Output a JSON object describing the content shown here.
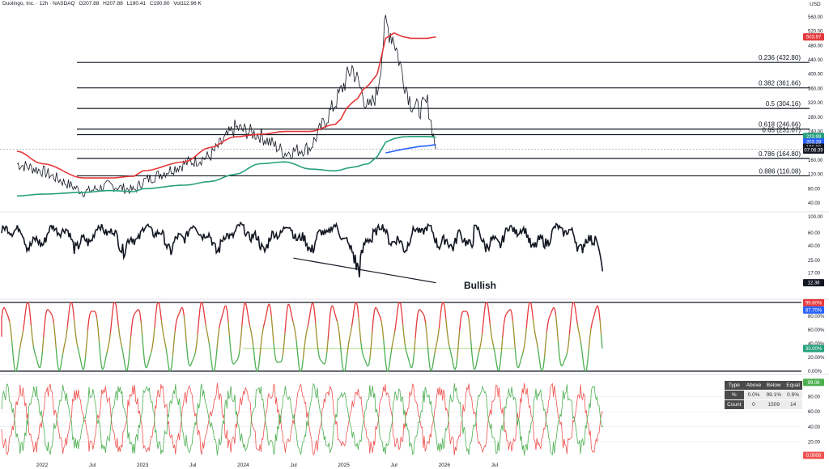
{
  "header": {
    "symbol": "Duolingo, Inc. · 12h · NASDAQ",
    "open": "O207.88",
    "high": "H207.88",
    "low": "L190.41",
    "close": "C190.80",
    "volume": "Vol112.96 K"
  },
  "currency": "USD",
  "chart_data": [
    {
      "type": "line",
      "panel": "price",
      "title": "",
      "x_ticks": [
        "2022",
        "Jul",
        "2023",
        "Jul",
        "2024",
        "Jul",
        "2025",
        "Jul",
        "2026",
        "Jul"
      ],
      "y_ticks": [
        "560.00",
        "520.00",
        "480.00",
        "440.00",
        "400.00",
        "360.00",
        "320.00",
        "280.00",
        "240.00",
        "200.00",
        "160.00",
        "120.00",
        "80.00",
        "40.00"
      ],
      "ylim": [
        20,
        580
      ],
      "series": [
        {
          "color": "#131722",
          "x": [
            "2021-10",
            "2022-01",
            "2022-06",
            "2022-09",
            "2022-12",
            "2023-01",
            "2023-06",
            "2023-09",
            "2023-12",
            "2024-03",
            "2024-06",
            "2024-09",
            "2024-12",
            "2025-02",
            "2025-04",
            "2025-05",
            "2025-06",
            "2025-07",
            "2025-08",
            "2025-09",
            "2025-10",
            "2025-11",
            "2025-12"
          ],
          "values": [
            150,
            130,
            70,
            90,
            75,
            100,
            150,
            170,
            250,
            230,
            180,
            195,
            320,
            420,
            300,
            350,
            540,
            500,
            400,
            320,
            300,
            320,
            190.8
          ]
        },
        {
          "color": "#e5383b",
          "x": [
            "2021-10",
            "2022-01",
            "2022-06",
            "2022-09",
            "2022-12",
            "2023-01",
            "2023-06",
            "2023-09",
            "2023-12",
            "2024-03",
            "2024-06",
            "2024-09",
            "2024-12",
            "2025-02",
            "2025-04",
            "2025-05",
            "2025-06",
            "2025-07",
            "2025-08",
            "2025-09",
            "2025-10",
            "2025-11",
            "2025-12"
          ],
          "values": [
            185,
            150,
            110,
            110,
            115,
            130,
            155,
            195,
            225,
            232,
            240,
            240,
            260,
            320,
            370,
            400,
            500,
            515,
            505,
            500,
            500,
            500,
            503.97
          ]
        },
        {
          "color": "#26a17b",
          "x": [
            "2021-10",
            "2022-01",
            "2022-06",
            "2022-09",
            "2022-12",
            "2023-01",
            "2023-06",
            "2023-09",
            "2023-12",
            "2024-03",
            "2024-06",
            "2024-09",
            "2024-12",
            "2025-02",
            "2025-04",
            "2025-05",
            "2025-06",
            "2025-07",
            "2025-08",
            "2025-09",
            "2025-10",
            "2025-11",
            "2025-12"
          ],
          "values": [
            60,
            65,
            70,
            75,
            72,
            80,
            90,
            100,
            120,
            150,
            155,
            135,
            130,
            140,
            150,
            170,
            210,
            220,
            225,
            226,
            226,
            226,
            223.99
          ]
        },
        {
          "color": "#2962ff",
          "x": [
            "2025-06",
            "2025-07",
            "2025-08",
            "2025-09",
            "2025-10",
            "2025-11",
            "2025-12"
          ],
          "values": [
            180,
            185,
            190,
            194,
            198,
            200,
            203.28
          ]
        }
      ],
      "fib_levels": [
        {
          "label": "0.236 (432.80)",
          "value": 432.8
        },
        {
          "label": "0.382 (361.66)",
          "value": 361.66
        },
        {
          "label": "0.5 (304.16)",
          "value": 304.16
        },
        {
          "label": "0.618 (246.66)",
          "value": 246.66
        },
        {
          "label": "0.65 (231.07)",
          "value": 231.07
        },
        {
          "label": "0.786 (164.80)",
          "value": 164.8
        },
        {
          "label": "0.886 (116.08)",
          "value": 116.08
        }
      ],
      "price_tags": [
        {
          "value": "503.97",
          "color": "#e5383b"
        },
        {
          "value": "223.99",
          "color": "#26a17b"
        },
        {
          "value": "203.28",
          "color": "#2962ff"
        },
        {
          "value": "190.80",
          "color": "#131722"
        },
        {
          "value": "07:06:39",
          "color": "#131722"
        }
      ]
    },
    {
      "type": "line",
      "panel": "oscillator",
      "y_ticks": [
        "100.00",
        "60.00",
        "40.00",
        "25.00",
        "17.00"
      ],
      "ylim": [
        10,
        100
      ],
      "annotation": "Bullish",
      "last_value": "12.38",
      "divergence_line": {
        "x": [
          "2024-07",
          "2025-12"
        ],
        "values": [
          27,
          12.38
        ]
      }
    },
    {
      "type": "line",
      "panel": "stochastic",
      "y_ticks": [
        "80.00%",
        "60.00%",
        "40.00%",
        "20.00%",
        "0.00%"
      ],
      "ylim": [
        0,
        100
      ],
      "price_tags": [
        {
          "value": "99.60%",
          "color": "#e5383b"
        },
        {
          "value": "87.70%",
          "color": "#2962ff"
        },
        {
          "value": "33.00%",
          "color": "#26a17b"
        }
      ]
    },
    {
      "type": "line",
      "panel": "ratio",
      "y_ticks": [
        "80.00",
        "60.00",
        "40.00",
        "20.00"
      ],
      "ylim": [
        0,
        100
      ],
      "series": [
        {
          "color": "#4caf50"
        },
        {
          "color": "#ef5350"
        }
      ],
      "price_tags": [
        {
          "value": "99.08",
          "color": "#4caf50"
        },
        {
          "value": "0.0000",
          "color": "#ef5350"
        }
      ]
    }
  ],
  "stats_table": {
    "headers": [
      "Type",
      "Above",
      "Below",
      "Equal"
    ],
    "rows": [
      [
        "%",
        "0.0%",
        "99.1%",
        "0.9%"
      ],
      [
        "Count",
        "0",
        "1509",
        "14"
      ]
    ]
  }
}
